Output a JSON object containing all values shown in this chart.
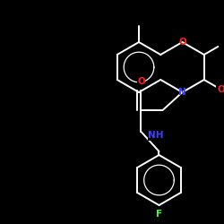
{
  "bg_color": "#000000",
  "bond_color": "#ffffff",
  "N_color": "#4040ff",
  "O_color": "#ff2020",
  "F_color": "#40ff40",
  "figsize": [
    2.5,
    2.5
  ],
  "dpi": 100,
  "lw": 1.4,
  "xlim": [
    0,
    250
  ],
  "ylim": [
    0,
    250
  ]
}
